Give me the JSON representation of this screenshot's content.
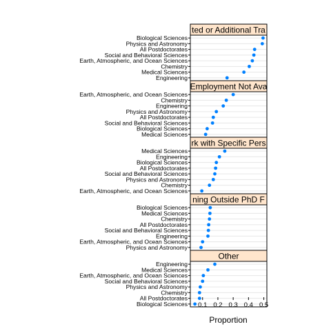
{
  "chart_data": {
    "type": "dotplot",
    "xlabel": "Proportion",
    "xlim": [
      0.02,
      0.52
    ],
    "xticks": [
      "0.1",
      "0.2",
      "0.3",
      "0.4",
      "0.5"
    ],
    "xtick_values": [
      0.1,
      0.2,
      0.3,
      0.4,
      0.5
    ],
    "point_color": "#0080ff",
    "strip_color": "#ffe5cc",
    "grid": true,
    "panels": [
      {
        "title": "Expected or Additional Training",
        "strip_text": "ted or Additional Tra",
        "categories": [
          "Biological Sciences",
          "Physics and Astronomy",
          "All Postdoctorates",
          "Social and Behavioral Sciences",
          "Earth, Atmospheric, and Ocean Sciences",
          "Chemistry",
          "Medical Sciences",
          "Engineering"
        ],
        "values": [
          0.495,
          0.49,
          0.44,
          0.435,
          0.425,
          0.405,
          0.37,
          0.26
        ]
      },
      {
        "title": "Other Employment Not Available",
        "strip_text": "Employment Not Ava",
        "categories": [
          "Earth, Atmospheric, and Ocean Sciences",
          "Chemistry",
          "Engineering",
          "Physics and Astronomy",
          "All Postdoctorates",
          "Social and Behavioral Sciences",
          "Biological Sciences",
          "Medical Sciences"
        ],
        "values": [
          0.3,
          0.255,
          0.235,
          0.19,
          0.17,
          0.165,
          0.13,
          0.12
        ]
      },
      {
        "title": "Work with Specific Person",
        "strip_text": "rk with Specific Pers",
        "categories": [
          "Medical Sciences",
          "Engineering",
          "Biological Sciences",
          "All Postdoctorates",
          "Social and Behavioral Sciences",
          "Physics and Astronomy",
          "Chemistry",
          "Earth, Atmospheric, and Ocean Sciences"
        ],
        "values": [
          0.245,
          0.21,
          0.19,
          0.185,
          0.18,
          0.17,
          0.145,
          0.095
        ]
      },
      {
        "title": "Training Outside PhD Field",
        "strip_text": "ning Outside PhD F",
        "categories": [
          "Biological Sciences",
          "Medical Sciences",
          "Chemistry",
          "All Postdoctorates",
          "Social and Behavioral Sciences",
          "Engineering",
          "Earth, Atmospheric, and Ocean Sciences",
          "Physics and Astronomy"
        ],
        "values": [
          0.15,
          0.148,
          0.145,
          0.14,
          0.138,
          0.135,
          0.1,
          0.09
        ]
      },
      {
        "title": "Other",
        "strip_text": "Other",
        "categories": [
          "Engineering",
          "Medical Sciences",
          "Earth, Atmospheric, and Ocean Sciences",
          "Social and Behavioral Sciences",
          "Physics and Astronomy",
          "Chemistry",
          "All Postdoctorates",
          "Biological Sciences"
        ],
        "values": [
          0.18,
          0.135,
          0.105,
          0.1,
          0.085,
          0.08,
          0.08,
          0.05
        ]
      }
    ]
  }
}
